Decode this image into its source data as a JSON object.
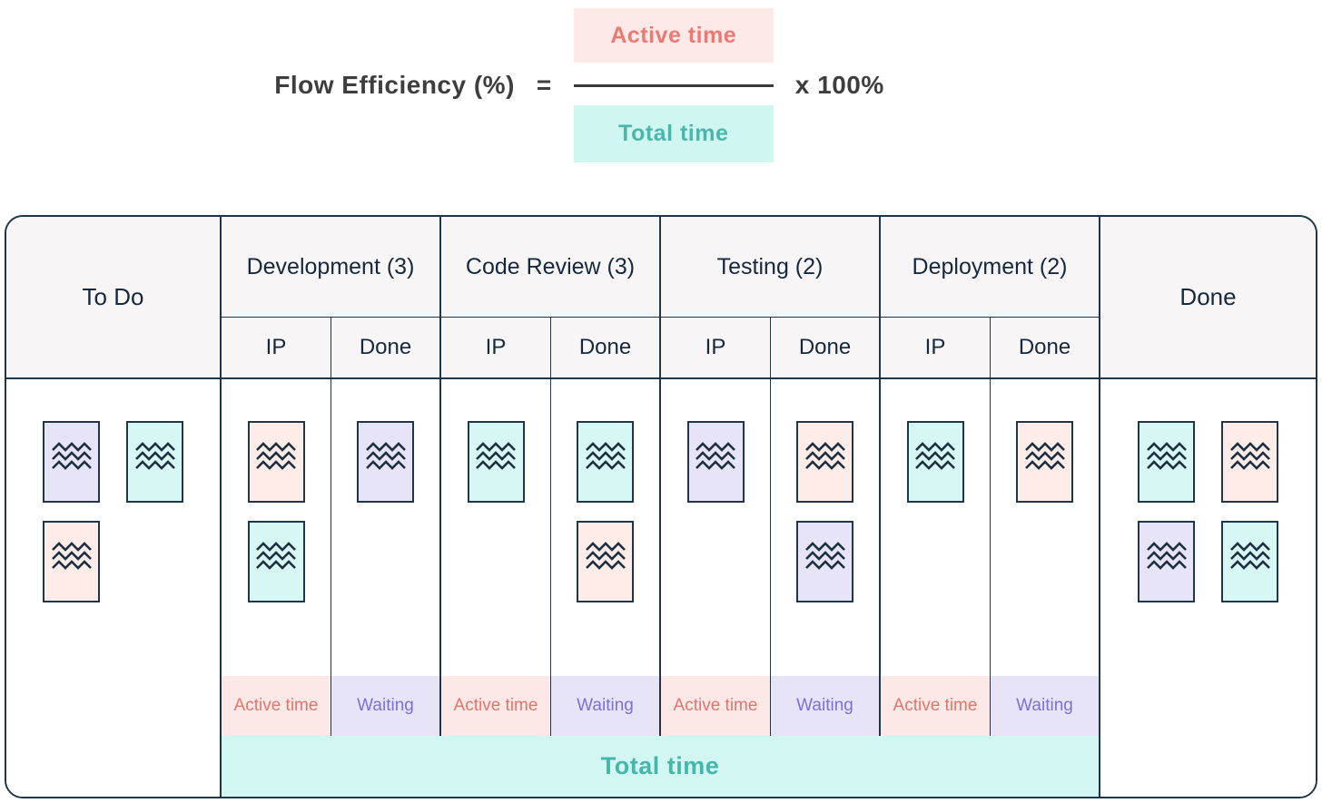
{
  "formula": {
    "label": "Flow Efficiency (%)",
    "equals_sign": "=",
    "numerator": "Active time",
    "denominator": "Total time",
    "multiplier": "x 100%"
  },
  "board": {
    "todo_label": "To Do",
    "done_label": "Done",
    "strip_active": "Active time",
    "strip_waiting": "Waiting",
    "total_label": "Total time",
    "stages": [
      {
        "label": "Development (3)",
        "ip_label": "IP",
        "done_label": "Done",
        "ip_cards": [
          [
            "pink"
          ],
          [
            "cyan"
          ]
        ],
        "done_cards": [
          [
            "lavender"
          ]
        ]
      },
      {
        "label": "Code Review (3)",
        "ip_label": "IP",
        "done_label": "Done",
        "ip_cards": [
          [
            "cyan"
          ]
        ],
        "done_cards": [
          [
            "cyan"
          ],
          [
            "pink"
          ]
        ]
      },
      {
        "label": "Testing (2)",
        "ip_label": "IP",
        "done_label": "Done",
        "ip_cards": [
          [
            "lavender"
          ]
        ],
        "done_cards": [
          [
            "pink"
          ],
          [
            "lavender"
          ]
        ]
      },
      {
        "label": "Deployment (2)",
        "ip_label": "IP",
        "done_label": "Done",
        "ip_cards": [
          [
            "cyan"
          ]
        ],
        "done_cards": [
          [
            "pink"
          ]
        ]
      }
    ],
    "todo_cards": [
      [
        "lavender",
        "cyan"
      ],
      [
        "pink"
      ]
    ],
    "done_cards": [
      [
        "cyan",
        "pink"
      ],
      [
        "lavender",
        "cyan"
      ]
    ]
  },
  "colors": {
    "border_navy": "#1d3649",
    "header_text": "#16293c",
    "header_bg": "#f8f5f7",
    "card_pink": "#fdece8",
    "card_cyan": "#d7f7f4",
    "card_lavender": "#e7e4f7",
    "active_strip_bg": "#fce8e6",
    "active_strip_text": "#e4756e",
    "waiting_strip_bg": "#e7e4f7",
    "waiting_strip_text": "#7a72d8",
    "total_bar_bg": "#d2f7f3",
    "total_bar_text": "#45b6a9",
    "numerator_bg": "#fdeae8",
    "numerator_text": "#ec7a72",
    "denominator_bg": "#d0f6f2",
    "denominator_text": "#4ab7aa",
    "formula_text": "#3e3e3e",
    "fraction_bar": "#3a3a3a"
  }
}
